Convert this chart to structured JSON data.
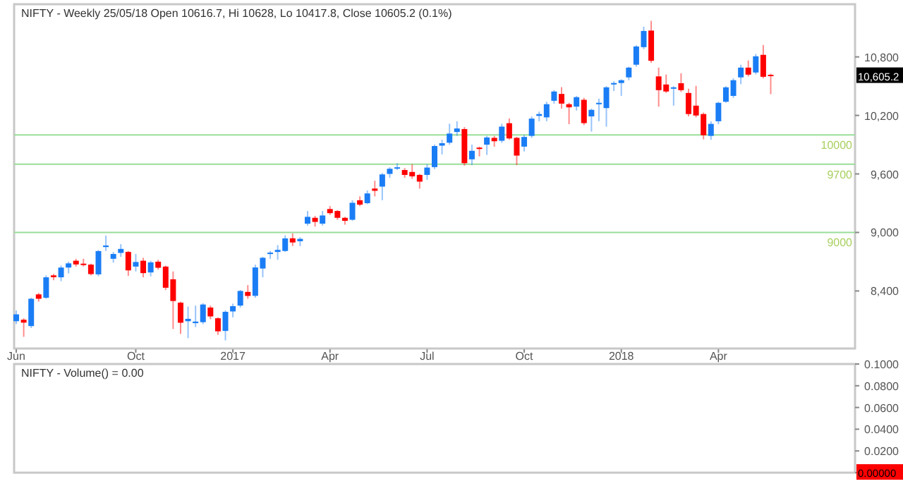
{
  "chart_data": [
    {
      "type": "candlestick",
      "title": "NIFTY - Weekly 25/05/18 Open 10616.7, Hi 10628, Lo 10417.8, Close 10605.2 (0.1%)",
      "x": [
        "2016-06-17",
        "2016-06-24",
        "2016-07-01",
        "2016-07-08",
        "2016-07-15",
        "2016-07-22",
        "2016-07-29",
        "2016-08-05",
        "2016-08-12",
        "2016-08-19",
        "2016-08-26",
        "2016-09-02",
        "2016-09-09",
        "2016-09-16",
        "2016-09-23",
        "2016-09-30",
        "2016-10-07",
        "2016-10-14",
        "2016-10-21",
        "2016-10-28",
        "2016-11-04",
        "2016-11-11",
        "2016-11-18",
        "2016-11-25",
        "2016-12-02",
        "2016-12-09",
        "2016-12-16",
        "2016-12-23",
        "2016-12-30",
        "2017-01-06",
        "2017-01-13",
        "2017-01-20",
        "2017-01-27",
        "2017-02-03",
        "2017-02-10",
        "2017-02-17",
        "2017-02-24",
        "2017-03-03",
        "2017-03-10",
        "2017-03-17",
        "2017-03-24",
        "2017-03-31",
        "2017-04-07",
        "2017-04-14",
        "2017-04-21",
        "2017-04-28",
        "2017-05-05",
        "2017-05-12",
        "2017-05-19",
        "2017-05-26",
        "2017-06-02",
        "2017-06-09",
        "2017-06-16",
        "2017-06-23",
        "2017-06-30",
        "2017-07-07",
        "2017-07-14",
        "2017-07-21",
        "2017-07-28",
        "2017-08-04",
        "2017-08-11",
        "2017-08-18",
        "2017-08-25",
        "2017-09-01",
        "2017-09-08",
        "2017-09-15",
        "2017-09-22",
        "2017-09-29",
        "2017-10-06",
        "2017-10-13",
        "2017-10-20",
        "2017-10-27",
        "2017-11-03",
        "2017-11-10",
        "2017-11-17",
        "2017-11-24",
        "2017-12-01",
        "2017-12-08",
        "2017-12-15",
        "2017-12-22",
        "2017-12-29",
        "2018-01-05",
        "2018-01-12",
        "2018-01-19",
        "2018-01-26",
        "2018-02-02",
        "2018-02-09",
        "2018-02-16",
        "2018-02-23",
        "2018-03-02",
        "2018-03-09",
        "2018-03-16",
        "2018-03-23",
        "2018-03-30",
        "2018-04-06",
        "2018-04-13",
        "2018-04-20",
        "2018-04-27",
        "2018-05-04",
        "2018-05-11",
        "2018-05-18",
        "2018-05-25"
      ],
      "ohlc": [
        [
          8090,
          8200,
          8060,
          8160
        ],
        [
          8105,
          8120,
          7930,
          8075
        ],
        [
          8040,
          8330,
          8020,
          8320
        ],
        [
          8365,
          8380,
          8290,
          8320
        ],
        [
          8330,
          8560,
          8320,
          8540
        ],
        [
          8560,
          8575,
          8510,
          8541
        ],
        [
          8540,
          8660,
          8500,
          8640
        ],
        [
          8640,
          8700,
          8580,
          8683
        ],
        [
          8710,
          8730,
          8650,
          8672
        ],
        [
          8680,
          8730,
          8650,
          8667
        ],
        [
          8670,
          8680,
          8560,
          8573
        ],
        [
          8570,
          8820,
          8550,
          8809
        ],
        [
          8850,
          8968,
          8810,
          8866
        ],
        [
          8730,
          8800,
          8690,
          8779
        ],
        [
          8790,
          8880,
          8750,
          8831
        ],
        [
          8800,
          8810,
          8555,
          8611
        ],
        [
          8650,
          8780,
          8600,
          8697
        ],
        [
          8710,
          8740,
          8540,
          8583
        ],
        [
          8590,
          8710,
          8550,
          8693
        ],
        [
          8700,
          8720,
          8620,
          8638
        ],
        [
          8650,
          8660,
          8410,
          8433
        ],
        [
          8520,
          8600,
          8010,
          8297
        ],
        [
          8280,
          8290,
          7960,
          8074
        ],
        [
          8090,
          8240,
          7916,
          8114
        ],
        [
          8070,
          8250,
          8030,
          8086
        ],
        [
          8080,
          8275,
          8060,
          8261
        ],
        [
          8230,
          8250,
          8110,
          8139
        ],
        [
          8120,
          8130,
          7950,
          7986
        ],
        [
          7990,
          8200,
          7893,
          8186
        ],
        [
          8190,
          8270,
          8130,
          8244
        ],
        [
          8250,
          8410,
          8230,
          8400
        ],
        [
          8390,
          8460,
          8320,
          8349
        ],
        [
          8350,
          8670,
          8330,
          8641
        ],
        [
          8630,
          8750,
          8540,
          8740
        ],
        [
          8780,
          8810,
          8730,
          8793
        ],
        [
          8800,
          8870,
          8720,
          8821
        ],
        [
          8810,
          8970,
          8800,
          8939
        ],
        [
          8940,
          8990,
          8860,
          8897
        ],
        [
          8910,
          8950,
          8860,
          8934
        ],
        [
          9090,
          9220,
          9070,
          9160
        ],
        [
          9150,
          9170,
          9060,
          9108
        ],
        [
          9090,
          9220,
          9070,
          9174
        ],
        [
          9240,
          9270,
          9180,
          9198
        ],
        [
          9220,
          9230,
          9130,
          9150
        ],
        [
          9150,
          9160,
          9080,
          9119
        ],
        [
          9130,
          9330,
          9120,
          9304
        ],
        [
          9330,
          9370,
          9270,
          9285
        ],
        [
          9300,
          9430,
          9290,
          9400
        ],
        [
          9450,
          9530,
          9370,
          9427
        ],
        [
          9470,
          9610,
          9330,
          9595
        ],
        [
          9600,
          9670,
          9560,
          9653
        ],
        [
          9660,
          9710,
          9640,
          9668
        ],
        [
          9640,
          9660,
          9560,
          9590
        ],
        [
          9620,
          9700,
          9550,
          9575
        ],
        [
          9590,
          9600,
          9450,
          9521
        ],
        [
          9590,
          9700,
          9540,
          9665
        ],
        [
          9670,
          9900,
          9650,
          9886
        ],
        [
          9890,
          9950,
          9800,
          9915
        ],
        [
          9920,
          10115,
          9900,
          10014
        ],
        [
          10030,
          10140,
          9990,
          10066
        ],
        [
          10060,
          10080,
          9685,
          9710
        ],
        [
          9750,
          9900,
          9690,
          9837
        ],
        [
          9870,
          9880,
          9780,
          9857
        ],
        [
          9900,
          9990,
          9795,
          9974
        ],
        [
          9970,
          9990,
          9880,
          9935
        ],
        [
          9940,
          10115,
          9920,
          10085
        ],
        [
          10120,
          10170,
          9950,
          9964
        ],
        [
          9970,
          9980,
          9690,
          9788
        ],
        [
          9880,
          10000,
          9830,
          9979
        ],
        [
          9990,
          10190,
          9970,
          10167
        ],
        [
          10195,
          10240,
          10140,
          10214
        ],
        [
          10180,
          10340,
          10140,
          10315
        ],
        [
          10350,
          10460,
          10320,
          10445
        ],
        [
          10420,
          10490,
          10270,
          10321
        ],
        [
          10315,
          10330,
          10110,
          10283
        ],
        [
          10290,
          10400,
          10250,
          10387
        ],
        [
          10360,
          10380,
          10100,
          10121
        ],
        [
          10190,
          10270,
          10035,
          10257
        ],
        [
          10315,
          10372,
          10141,
          10329
        ],
        [
          10275,
          10500,
          10085,
          10488
        ],
        [
          10517,
          10550,
          10450,
          10532
        ],
        [
          10532,
          10570,
          10400,
          10561
        ],
        [
          10590,
          10700,
          10560,
          10690
        ],
        [
          10720,
          10920,
          10700,
          10907
        ],
        [
          10900,
          11110,
          10880,
          11066
        ],
        [
          11070,
          11170,
          10740,
          10760
        ],
        [
          10600,
          10690,
          10290,
          10459
        ],
        [
          10517,
          10620,
          10430,
          10445
        ],
        [
          10480,
          10500,
          10300,
          10488
        ],
        [
          10530,
          10633,
          10440,
          10459
        ],
        [
          10430,
          10474,
          10190,
          10214
        ],
        [
          10300,
          10503,
          10180,
          10199
        ],
        [
          10214,
          10230,
          9954,
          9997
        ],
        [
          9990,
          10140,
          9950,
          10113
        ],
        [
          10140,
          10340,
          10110,
          10329
        ],
        [
          10340,
          10500,
          10330,
          10488
        ],
        [
          10400,
          10580,
          10380,
          10561
        ],
        [
          10590,
          10720,
          10520,
          10690
        ],
        [
          10690,
          10763,
          10600,
          10618
        ],
        [
          10640,
          10830,
          10620,
          10806
        ],
        [
          10821,
          10922,
          10580,
          10596
        ],
        [
          10616.7,
          10628,
          10417.8,
          10605.2
        ]
      ],
      "colors": [
        "#1a7df5",
        "#ff0000",
        "#1a7df5",
        "#ff0000",
        "#1a7df5",
        "#ff0000",
        "#1a7df5",
        "#1a7df5",
        "#ff0000",
        "#ff0000",
        "#ff0000",
        "#1a7df5",
        "#1a7df5",
        "#1a7df5",
        "#1a7df5",
        "#ff0000",
        "#1a7df5",
        "#ff0000",
        "#1a7df5",
        "#ff0000",
        "#ff0000",
        "#ff0000",
        "#ff0000",
        "#1a7df5",
        "#1a7df5",
        "#1a7df5",
        "#ff0000",
        "#ff0000",
        "#1a7df5",
        "#1a7df5",
        "#1a7df5",
        "#ff0000",
        "#1a7df5",
        "#1a7df5",
        "#1a7df5",
        "#1a7df5",
        "#1a7df5",
        "#ff0000",
        "#1a7df5",
        "#1a7df5",
        "#ff0000",
        "#1a7df5",
        "#ff0000",
        "#ff0000",
        "#ff0000",
        "#1a7df5",
        "#ff0000",
        "#1a7df5",
        "#ff0000",
        "#1a7df5",
        "#1a7df5",
        "#1a7df5",
        "#ff0000",
        "#ff0000",
        "#ff0000",
        "#1a7df5",
        "#1a7df5",
        "#1a7df5",
        "#1a7df5",
        "#1a7df5",
        "#ff0000",
        "#1a7df5",
        "#ff0000",
        "#1a7df5",
        "#ff0000",
        "#1a7df5",
        "#ff0000",
        "#ff0000",
        "#1a7df5",
        "#1a7df5",
        "#1a7df5",
        "#1a7df5",
        "#1a7df5",
        "#ff0000",
        "#ff0000",
        "#1a7df5",
        "#ff0000",
        "#1a7df5",
        "#1a7df5",
        "#1a7df5",
        "#1a7df5",
        "#1a7df5",
        "#1a7df5",
        "#1a7df5",
        "#1a7df5",
        "#ff0000",
        "#ff0000",
        "#ff0000",
        "#1a7df5",
        "#ff0000",
        "#ff0000",
        "#ff0000",
        "#ff0000",
        "#1a7df5",
        "#1a7df5",
        "#1a7df5",
        "#1a7df5",
        "#1a7df5",
        "#ff0000",
        "#1a7df5",
        "#ff0000",
        "#ff0000"
      ],
      "xlim": [
        "2016-06-15",
        "2018-08-12"
      ],
      "xticks": [
        {
          "value": "2016-06-17",
          "label": "Jun"
        },
        {
          "value": "2016-10-07",
          "label": "Oct"
        },
        {
          "value": "2017-01-06",
          "label": "2017"
        },
        {
          "value": "2017-04-07",
          "label": "Apr"
        },
        {
          "value": "2017-07-07",
          "label": "Jul"
        },
        {
          "value": "2017-10-06",
          "label": "Oct"
        },
        {
          "value": "2018-01-05",
          "label": "2018"
        },
        {
          "value": "2018-04-06",
          "label": "Apr"
        }
      ],
      "ylim": [
        7810,
        11340
      ],
      "yticks": [
        {
          "value": 8400,
          "label": "8,400"
        },
        {
          "value": 9000,
          "label": "9,000"
        },
        {
          "value": 9600,
          "label": "9,600"
        },
        {
          "value": 10200,
          "label": "10,200"
        },
        {
          "value": 10800,
          "label": "10,800"
        }
      ],
      "ref_lines": [
        {
          "axis": "y",
          "value": 10000,
          "label": "10000",
          "color": "#99dd99"
        },
        {
          "axis": "y",
          "value": 9700,
          "label": "9700",
          "color": "#99dd99"
        },
        {
          "axis": "y",
          "value": 9000,
          "label": "9000",
          "color": "#99dd99"
        }
      ],
      "annotations": [
        "10,605.2"
      ],
      "grid": false,
      "legend": false
    },
    {
      "type": "bar",
      "title": "NIFTY - Volume() = 0.00",
      "xlim": [
        "2016-06-15",
        "2018-08-12"
      ],
      "ylim": [
        0,
        0.1
      ],
      "yticks": [
        {
          "value": 0,
          "label": null
        },
        {
          "value": 0.02,
          "label": "0.0200"
        },
        {
          "value": 0.04,
          "label": "0.0400"
        },
        {
          "value": 0.06,
          "label": "0.0600"
        },
        {
          "value": 0.08,
          "label": "0.0800"
        },
        {
          "value": 0.1,
          "label": "0.1000"
        }
      ],
      "tick_labels": "y",
      "annotations": [
        "0.00000"
      ],
      "grid": false,
      "legend": false
    }
  ]
}
